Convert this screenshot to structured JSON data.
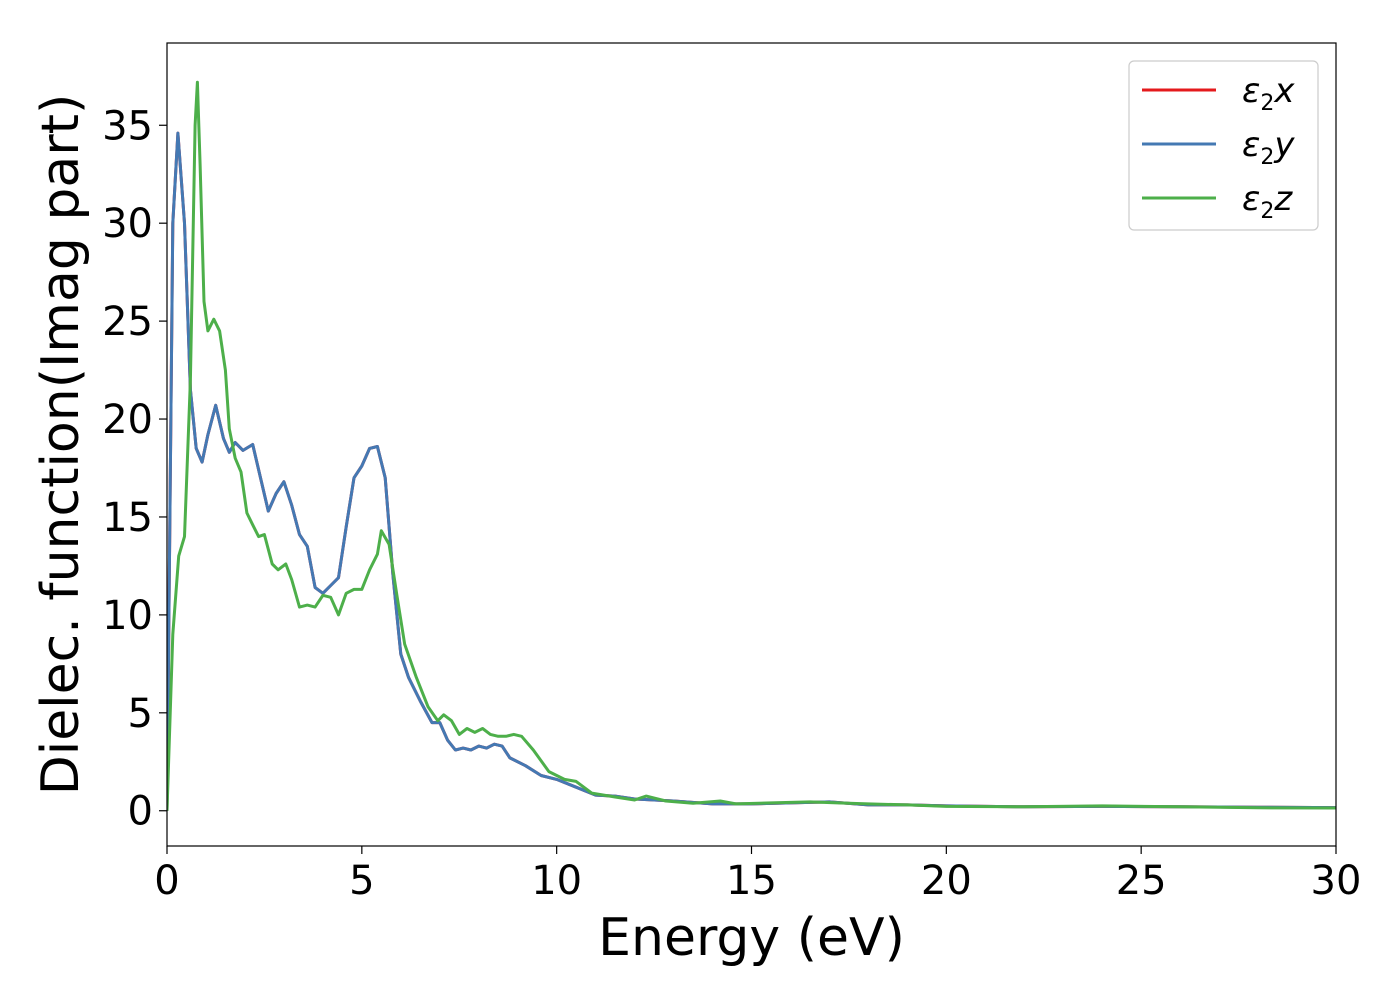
{
  "chart_data": {
    "type": "line",
    "xlabel": "Energy (eV)",
    "ylabel": "Dielec. function(Imag part)",
    "xlim": [
      0,
      30
    ],
    "ylim": [
      -1.8,
      39.2
    ],
    "xticks": [
      0,
      5,
      10,
      15,
      20,
      25,
      30
    ],
    "yticks": [
      0,
      5,
      10,
      15,
      20,
      25,
      30,
      35
    ],
    "grid": false,
    "legend": "top-right",
    "series": [
      {
        "name": "ε2x",
        "legend_symbol": "ε",
        "legend_sub": "2",
        "legend_var": "x",
        "color": "#e41a1c",
        "points": [
          [
            0,
            0
          ],
          [
            0.15,
            30
          ],
          [
            0.28,
            34.6
          ],
          [
            0.45,
            30
          ],
          [
            0.6,
            21.5
          ],
          [
            0.75,
            18.5
          ],
          [
            0.9,
            17.8
          ],
          [
            1.05,
            19.2
          ],
          [
            1.25,
            20.7
          ],
          [
            1.45,
            19.0
          ],
          [
            1.6,
            18.3
          ],
          [
            1.75,
            18.8
          ],
          [
            1.95,
            18.4
          ],
          [
            2.2,
            18.7
          ],
          [
            2.4,
            17.0
          ],
          [
            2.6,
            15.3
          ],
          [
            2.8,
            16.2
          ],
          [
            3.0,
            16.8
          ],
          [
            3.2,
            15.6
          ],
          [
            3.4,
            14.1
          ],
          [
            3.6,
            13.5
          ],
          [
            3.8,
            11.4
          ],
          [
            4.0,
            11.1
          ],
          [
            4.2,
            11.5
          ],
          [
            4.4,
            11.9
          ],
          [
            4.6,
            14.5
          ],
          [
            4.8,
            17.0
          ],
          [
            5.0,
            17.6
          ],
          [
            5.2,
            18.5
          ],
          [
            5.4,
            18.6
          ],
          [
            5.6,
            17.0
          ],
          [
            5.8,
            12.0
          ],
          [
            6.0,
            8.0
          ],
          [
            6.2,
            6.8
          ],
          [
            6.5,
            5.6
          ],
          [
            6.8,
            4.5
          ],
          [
            7.0,
            4.5
          ],
          [
            7.2,
            3.6
          ],
          [
            7.4,
            3.1
          ],
          [
            7.6,
            3.2
          ],
          [
            7.8,
            3.1
          ],
          [
            8.0,
            3.3
          ],
          [
            8.2,
            3.2
          ],
          [
            8.4,
            3.4
          ],
          [
            8.6,
            3.3
          ],
          [
            8.8,
            2.7
          ],
          [
            9.2,
            2.3
          ],
          [
            9.6,
            1.8
          ],
          [
            10.0,
            1.6
          ],
          [
            10.5,
            1.2
          ],
          [
            11.0,
            0.8
          ],
          [
            11.5,
            0.75
          ],
          [
            12.0,
            0.6
          ],
          [
            13.0,
            0.5
          ],
          [
            14.0,
            0.35
          ],
          [
            15.0,
            0.35
          ],
          [
            16.0,
            0.4
          ],
          [
            17.0,
            0.45
          ],
          [
            18.0,
            0.3
          ],
          [
            19.0,
            0.3
          ],
          [
            20.0,
            0.25
          ],
          [
            22.0,
            0.2
          ],
          [
            24.0,
            0.22
          ],
          [
            26.0,
            0.2
          ],
          [
            28.0,
            0.18
          ],
          [
            30.0,
            0.16
          ]
        ]
      },
      {
        "name": "ε2y",
        "legend_symbol": "ε",
        "legend_sub": "2",
        "legend_var": "y",
        "color": "#4479b3",
        "points": [
          [
            0,
            0
          ],
          [
            0.15,
            30
          ],
          [
            0.28,
            34.6
          ],
          [
            0.45,
            30
          ],
          [
            0.6,
            21.5
          ],
          [
            0.75,
            18.5
          ],
          [
            0.9,
            17.8
          ],
          [
            1.05,
            19.2
          ],
          [
            1.25,
            20.7
          ],
          [
            1.45,
            19.0
          ],
          [
            1.6,
            18.3
          ],
          [
            1.75,
            18.8
          ],
          [
            1.95,
            18.4
          ],
          [
            2.2,
            18.7
          ],
          [
            2.4,
            17.0
          ],
          [
            2.6,
            15.3
          ],
          [
            2.8,
            16.2
          ],
          [
            3.0,
            16.8
          ],
          [
            3.2,
            15.6
          ],
          [
            3.4,
            14.1
          ],
          [
            3.6,
            13.5
          ],
          [
            3.8,
            11.4
          ],
          [
            4.0,
            11.1
          ],
          [
            4.2,
            11.5
          ],
          [
            4.4,
            11.9
          ],
          [
            4.6,
            14.5
          ],
          [
            4.8,
            17.0
          ],
          [
            5.0,
            17.6
          ],
          [
            5.2,
            18.5
          ],
          [
            5.4,
            18.6
          ],
          [
            5.6,
            17.0
          ],
          [
            5.8,
            12.0
          ],
          [
            6.0,
            8.0
          ],
          [
            6.2,
            6.8
          ],
          [
            6.5,
            5.6
          ],
          [
            6.8,
            4.5
          ],
          [
            7.0,
            4.5
          ],
          [
            7.2,
            3.6
          ],
          [
            7.4,
            3.1
          ],
          [
            7.6,
            3.2
          ],
          [
            7.8,
            3.1
          ],
          [
            8.0,
            3.3
          ],
          [
            8.2,
            3.2
          ],
          [
            8.4,
            3.4
          ],
          [
            8.6,
            3.3
          ],
          [
            8.8,
            2.7
          ],
          [
            9.2,
            2.3
          ],
          [
            9.6,
            1.8
          ],
          [
            10.0,
            1.6
          ],
          [
            10.5,
            1.2
          ],
          [
            11.0,
            0.8
          ],
          [
            11.5,
            0.75
          ],
          [
            12.0,
            0.6
          ],
          [
            13.0,
            0.5
          ],
          [
            14.0,
            0.35
          ],
          [
            15.0,
            0.35
          ],
          [
            16.0,
            0.4
          ],
          [
            17.0,
            0.45
          ],
          [
            18.0,
            0.3
          ],
          [
            19.0,
            0.3
          ],
          [
            20.0,
            0.25
          ],
          [
            22.0,
            0.2
          ],
          [
            24.0,
            0.22
          ],
          [
            26.0,
            0.2
          ],
          [
            28.0,
            0.18
          ],
          [
            30.0,
            0.16
          ]
        ]
      },
      {
        "name": "ε2z",
        "legend_symbol": "ε",
        "legend_sub": "2",
        "legend_var": "z",
        "color": "#4daf4a",
        "points": [
          [
            0,
            0
          ],
          [
            0.15,
            9
          ],
          [
            0.3,
            13
          ],
          [
            0.45,
            14
          ],
          [
            0.6,
            22
          ],
          [
            0.72,
            35
          ],
          [
            0.78,
            37.2
          ],
          [
            0.85,
            33
          ],
          [
            0.95,
            26
          ],
          [
            1.05,
            24.5
          ],
          [
            1.2,
            25.1
          ],
          [
            1.35,
            24.5
          ],
          [
            1.5,
            22.5
          ],
          [
            1.6,
            19.5
          ],
          [
            1.75,
            18
          ],
          [
            1.9,
            17.3
          ],
          [
            2.05,
            15.2
          ],
          [
            2.2,
            14.6
          ],
          [
            2.35,
            14.0
          ],
          [
            2.5,
            14.1
          ],
          [
            2.7,
            12.6
          ],
          [
            2.85,
            12.3
          ],
          [
            3.05,
            12.6
          ],
          [
            3.2,
            11.8
          ],
          [
            3.4,
            10.4
          ],
          [
            3.6,
            10.5
          ],
          [
            3.8,
            10.4
          ],
          [
            4.0,
            11.0
          ],
          [
            4.2,
            10.9
          ],
          [
            4.4,
            10.0
          ],
          [
            4.6,
            11.1
          ],
          [
            4.8,
            11.3
          ],
          [
            5.0,
            11.3
          ],
          [
            5.2,
            12.3
          ],
          [
            5.4,
            13.1
          ],
          [
            5.5,
            14.3
          ],
          [
            5.7,
            13.6
          ],
          [
            5.9,
            11.0
          ],
          [
            6.1,
            8.5
          ],
          [
            6.4,
            6.8
          ],
          [
            6.7,
            5.3
          ],
          [
            6.95,
            4.6
          ],
          [
            7.1,
            4.9
          ],
          [
            7.3,
            4.6
          ],
          [
            7.5,
            3.9
          ],
          [
            7.7,
            4.2
          ],
          [
            7.9,
            4.0
          ],
          [
            8.1,
            4.2
          ],
          [
            8.3,
            3.9
          ],
          [
            8.5,
            3.8
          ],
          [
            8.7,
            3.8
          ],
          [
            8.9,
            3.9
          ],
          [
            9.1,
            3.8
          ],
          [
            9.4,
            3.1
          ],
          [
            9.8,
            2.0
          ],
          [
            10.2,
            1.6
          ],
          [
            10.5,
            1.5
          ],
          [
            10.9,
            0.9
          ],
          [
            11.5,
            0.7
          ],
          [
            12.0,
            0.55
          ],
          [
            12.3,
            0.75
          ],
          [
            12.8,
            0.5
          ],
          [
            13.5,
            0.38
          ],
          [
            14.2,
            0.5
          ],
          [
            14.6,
            0.35
          ],
          [
            15.5,
            0.4
          ],
          [
            16.5,
            0.45
          ],
          [
            17.2,
            0.4
          ],
          [
            18.0,
            0.35
          ],
          [
            19.0,
            0.3
          ],
          [
            20.0,
            0.22
          ],
          [
            22.0,
            0.2
          ],
          [
            24.0,
            0.25
          ],
          [
            26.0,
            0.2
          ],
          [
            28.0,
            0.15
          ],
          [
            30.0,
            0.14
          ]
        ]
      }
    ]
  }
}
